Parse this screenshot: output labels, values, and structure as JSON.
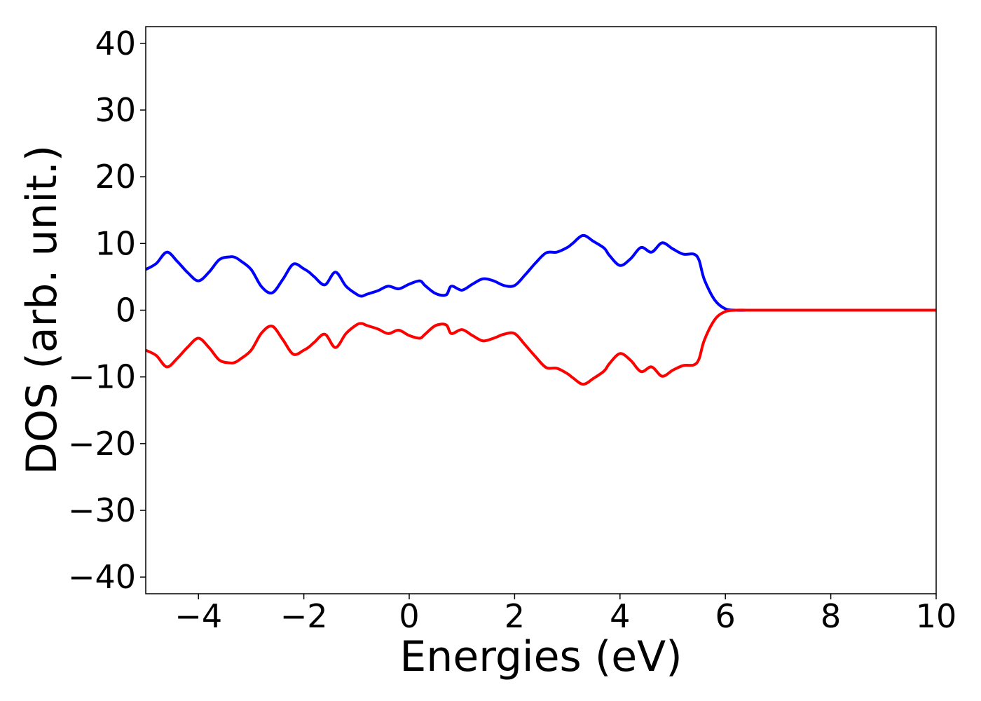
{
  "chart_data": {
    "type": "line",
    "title": "",
    "xlabel": "Energies (eV)",
    "ylabel": "DOS (arb. unit.)",
    "xlim": [
      -5,
      10
    ],
    "ylim": [
      -42.5,
      42.5
    ],
    "xticks": [
      -4,
      -2,
      0,
      2,
      4,
      6,
      8,
      10
    ],
    "xtick_labels": [
      "−4",
      "−2",
      "0",
      "2",
      "4",
      "6",
      "8",
      "10"
    ],
    "yticks": [
      40,
      30,
      20,
      10,
      0,
      -10,
      -20,
      -30,
      -40
    ],
    "ytick_labels": [
      "40",
      "30",
      "20",
      "10",
      "0",
      "−10",
      "−20",
      "−30",
      "−40"
    ],
    "grid": false,
    "legend": "none",
    "series": [
      {
        "color": "#0000ff",
        "x": [
          -5.0,
          -4.8,
          -4.6,
          -4.4,
          -4.2,
          -4.0,
          -3.8,
          -3.6,
          -3.4,
          -3.3,
          -3.2,
          -3.0,
          -2.8,
          -2.6,
          -2.4,
          -2.2,
          -2.0,
          -1.9,
          -1.8,
          -1.6,
          -1.4,
          -1.2,
          -1.0,
          -0.9,
          -0.8,
          -0.6,
          -0.4,
          -0.2,
          0.0,
          0.2,
          0.3,
          0.5,
          0.7,
          0.8,
          1.0,
          1.2,
          1.4,
          1.6,
          1.8,
          2.0,
          2.2,
          2.4,
          2.6,
          2.8,
          3.0,
          3.1,
          3.3,
          3.5,
          3.7,
          3.8,
          4.0,
          4.2,
          4.4,
          4.6,
          4.8,
          5.0,
          5.2,
          5.4,
          5.5,
          5.6,
          5.8,
          6.0,
          6.2,
          6.4,
          6.6,
          6.8,
          7.0,
          7.2,
          7.4,
          7.6,
          7.8,
          8.0,
          9.0,
          10.0
        ],
        "y": [
          6.1,
          7.0,
          8.7,
          7.3,
          5.6,
          4.4,
          5.7,
          7.6,
          8.0,
          7.9,
          7.4,
          6.1,
          3.5,
          2.6,
          4.6,
          6.9,
          6.2,
          5.7,
          5.0,
          3.8,
          5.7,
          3.6,
          2.4,
          2.1,
          2.4,
          2.9,
          3.6,
          3.2,
          3.9,
          4.4,
          3.7,
          2.5,
          2.3,
          3.6,
          3.0,
          3.9,
          4.7,
          4.4,
          3.7,
          3.7,
          5.3,
          7.1,
          8.6,
          8.7,
          9.4,
          10.0,
          11.2,
          10.3,
          9.3,
          8.2,
          6.7,
          7.7,
          9.4,
          8.7,
          10.1,
          9.2,
          8.4,
          8.4,
          7.5,
          4.6,
          1.5,
          0.2,
          0.0,
          0.0,
          0.0,
          0.0,
          0.0,
          0.0,
          0.0,
          0.0,
          0.0,
          0.0,
          0.0,
          0.0
        ]
      },
      {
        "color": "#ff0000",
        "x": [
          -5.0,
          -4.8,
          -4.6,
          -4.4,
          -4.2,
          -4.0,
          -3.8,
          -3.6,
          -3.4,
          -3.3,
          -3.2,
          -3.0,
          -2.8,
          -2.6,
          -2.4,
          -2.2,
          -2.0,
          -1.9,
          -1.8,
          -1.6,
          -1.4,
          -1.2,
          -1.0,
          -0.9,
          -0.8,
          -0.6,
          -0.4,
          -0.2,
          0.0,
          0.2,
          0.3,
          0.5,
          0.7,
          0.8,
          1.0,
          1.2,
          1.4,
          1.6,
          1.8,
          2.0,
          2.2,
          2.4,
          2.6,
          2.8,
          3.0,
          3.1,
          3.3,
          3.5,
          3.7,
          3.8,
          4.0,
          4.2,
          4.4,
          4.6,
          4.8,
          5.0,
          5.2,
          5.4,
          5.5,
          5.6,
          5.8,
          6.0,
          6.2,
          6.4,
          6.6,
          6.8,
          7.0,
          7.2,
          7.4,
          7.6,
          7.8,
          8.0,
          9.0,
          10.0
        ],
        "y": [
          -6.0,
          -6.8,
          -8.5,
          -7.2,
          -5.5,
          -4.2,
          -5.6,
          -7.5,
          -7.9,
          -7.8,
          -7.3,
          -6.0,
          -3.4,
          -2.4,
          -4.4,
          -6.6,
          -6.0,
          -5.5,
          -4.8,
          -3.6,
          -5.6,
          -3.5,
          -2.2,
          -2.0,
          -2.3,
          -2.8,
          -3.5,
          -3.0,
          -3.8,
          -4.2,
          -3.6,
          -2.3,
          -2.2,
          -3.5,
          -2.9,
          -3.8,
          -4.6,
          -4.2,
          -3.6,
          -3.5,
          -5.2,
          -7.0,
          -8.6,
          -8.7,
          -9.5,
          -10.1,
          -11.1,
          -10.2,
          -9.1,
          -8.0,
          -6.5,
          -7.5,
          -9.2,
          -8.5,
          -9.9,
          -9.0,
          -8.3,
          -8.2,
          -7.3,
          -4.5,
          -1.4,
          -0.2,
          0.0,
          0.0,
          0.0,
          0.0,
          0.0,
          0.0,
          0.0,
          0.0,
          0.0,
          0.0,
          0.0,
          0.0
        ]
      }
    ]
  }
}
